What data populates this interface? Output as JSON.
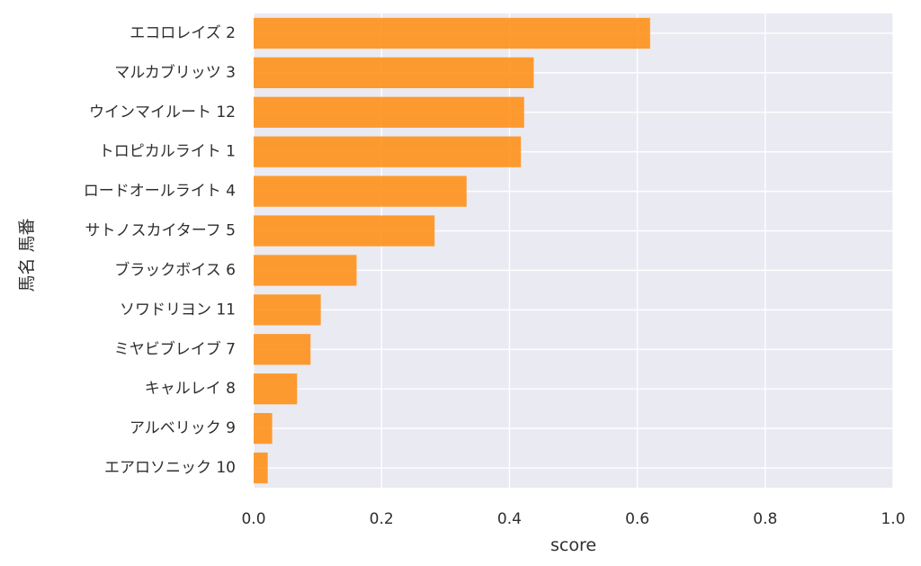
{
  "colors": {
    "bar": "#FF9119",
    "plot_background": "#EAEAF2",
    "grid": "#FFFFFF",
    "text": "#2E2E2E"
  },
  "chart_data": {
    "type": "bar",
    "orientation": "horizontal",
    "title": "",
    "xlabel": "score",
    "ylabel": "馬名 馬番",
    "xlim": [
      0.0,
      1.0
    ],
    "xticks": [
      0.0,
      0.2,
      0.4,
      0.6,
      0.8,
      1.0
    ],
    "xtick_labels": [
      "0.0",
      "0.2",
      "0.4",
      "0.6",
      "0.8",
      "1.0"
    ],
    "grid": true,
    "categories": [
      "エコロレイズ 2",
      "マルカブリッツ 3",
      "ウインマイルート 12",
      "トロピカルライト 1",
      "ロードオールライト 4",
      "サトノスカイターフ 5",
      "ブラックボイス 6",
      "ソワドリヨン 11",
      "ミヤビブレイブ 7",
      "キャルレイ 8",
      "アルベリック 9",
      "エアロソニック 10"
    ],
    "values": [
      0.62,
      0.438,
      0.423,
      0.418,
      0.333,
      0.283,
      0.161,
      0.105,
      0.089,
      0.068,
      0.029,
      0.022
    ]
  }
}
